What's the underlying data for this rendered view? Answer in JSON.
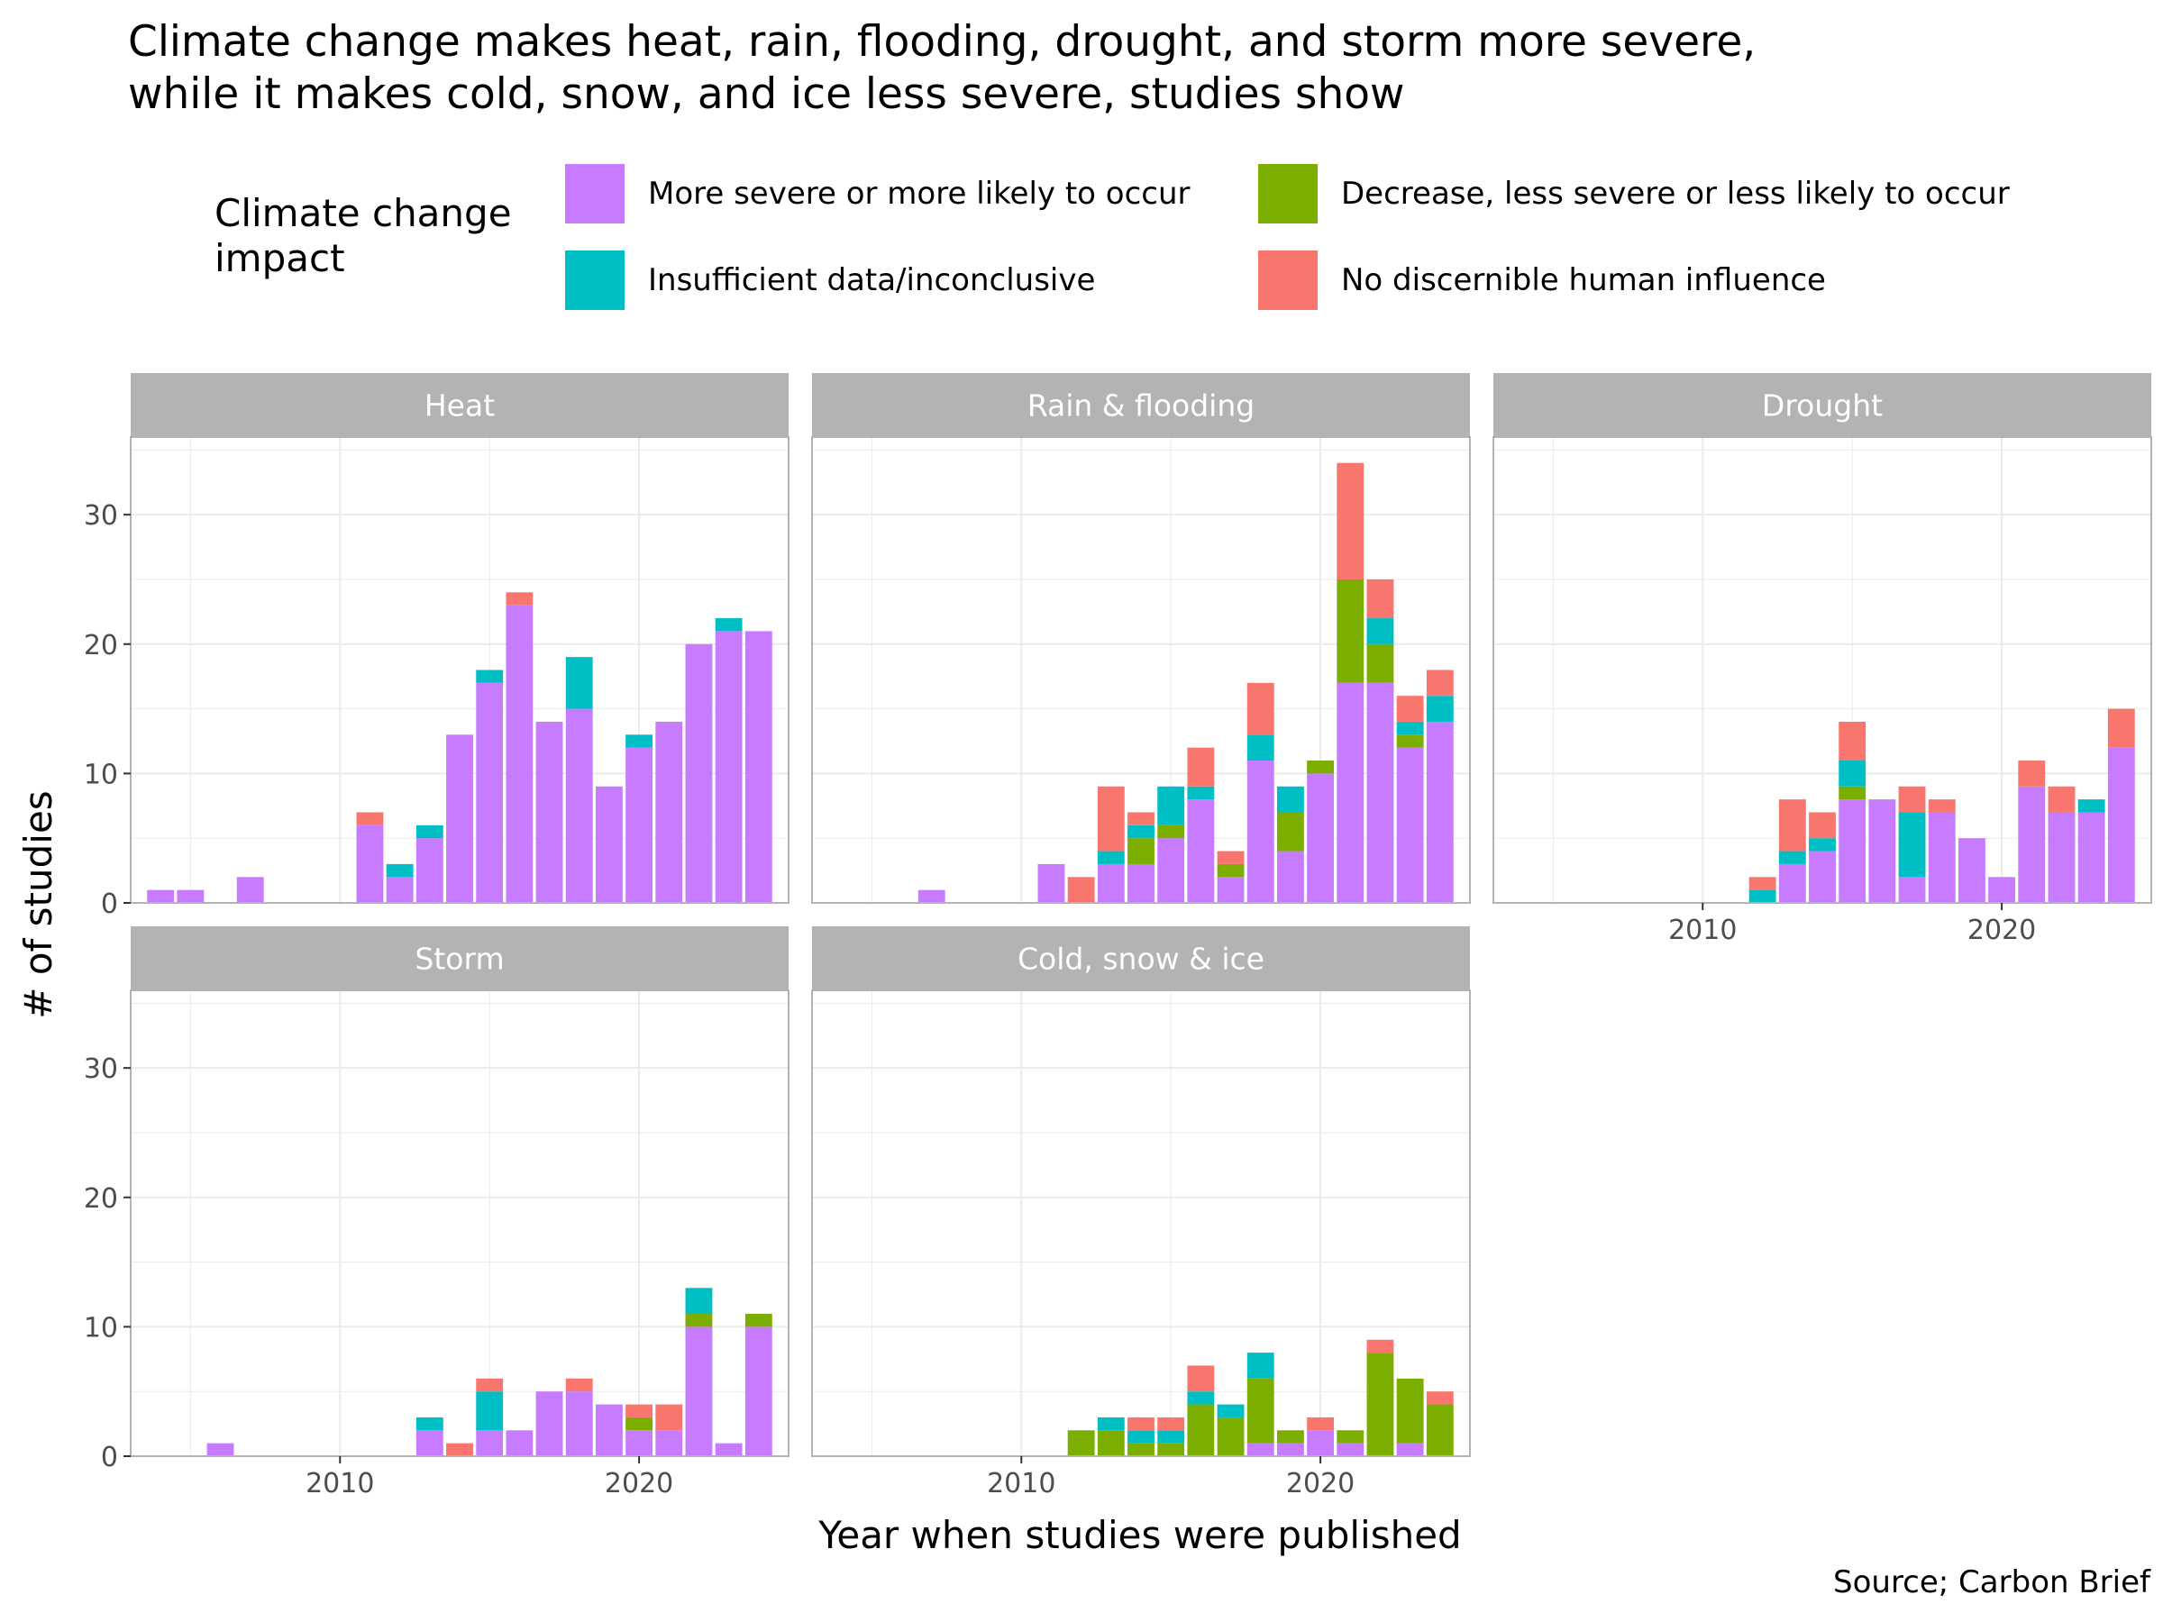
{
  "title_lines": [
    "Climate change makes heat, rain, flooding, drought, and storm more severe,",
    "while it makes cold, snow, and ice less severe, studies show"
  ],
  "legend": {
    "title_lines": [
      "Climate change",
      "impact"
    ],
    "items": [
      {
        "key": "more",
        "label": "More severe or more likely to occur",
        "color": "#C77CFF"
      },
      {
        "key": "decrease",
        "label": "Decrease, less severe or less likely to occur",
        "color": "#7CAE00"
      },
      {
        "key": "insufficient",
        "label": "Insufficient data/inconclusive",
        "color": "#00BFC4"
      },
      {
        "key": "none",
        "label": "No discernible human influence",
        "color": "#F8766D"
      }
    ]
  },
  "source": "Source; Carbon Brief",
  "chart_data": {
    "type": "bar",
    "stacked": true,
    "facets": true,
    "xlabel": "Year when studies were published",
    "ylabel": "# of studies",
    "xlim": [
      2003,
      2025
    ],
    "ylim": [
      0,
      36
    ],
    "x_ticks": [
      2010,
      2020
    ],
    "y_ticks": [
      0,
      10,
      20,
      30
    ],
    "stack_order": [
      "more",
      "decrease",
      "insufficient",
      "none"
    ],
    "panels": [
      {
        "name": "Heat",
        "bars": [
          {
            "year": 2004,
            "more": 1
          },
          {
            "year": 2005,
            "more": 1
          },
          {
            "year": 2007,
            "more": 2
          },
          {
            "year": 2011,
            "more": 6,
            "none": 1
          },
          {
            "year": 2012,
            "more": 2,
            "insufficient": 1
          },
          {
            "year": 2013,
            "more": 5,
            "insufficient": 1
          },
          {
            "year": 2014,
            "more": 13
          },
          {
            "year": 2015,
            "more": 17,
            "insufficient": 1
          },
          {
            "year": 2016,
            "more": 23,
            "none": 1
          },
          {
            "year": 2017,
            "more": 14
          },
          {
            "year": 2018,
            "more": 15,
            "insufficient": 4
          },
          {
            "year": 2019,
            "more": 9
          },
          {
            "year": 2020,
            "more": 12,
            "insufficient": 1
          },
          {
            "year": 2021,
            "more": 14
          },
          {
            "year": 2022,
            "more": 20
          },
          {
            "year": 2023,
            "more": 21,
            "insufficient": 1
          },
          {
            "year": 2024,
            "more": 21
          }
        ]
      },
      {
        "name": "Rain & flooding",
        "bars": [
          {
            "year": 2007,
            "more": 1
          },
          {
            "year": 2011,
            "more": 3
          },
          {
            "year": 2012,
            "none": 2
          },
          {
            "year": 2013,
            "more": 3,
            "insufficient": 1,
            "none": 5
          },
          {
            "year": 2014,
            "more": 3,
            "insufficient": 1,
            "decrease": 2,
            "none": 1
          },
          {
            "year": 2015,
            "more": 5,
            "insufficient": 3,
            "decrease": 1
          },
          {
            "year": 2016,
            "more": 8,
            "insufficient": 1,
            "none": 3
          },
          {
            "year": 2017,
            "more": 2,
            "decrease": 1,
            "none": 1
          },
          {
            "year": 2018,
            "more": 11,
            "insufficient": 2,
            "none": 4
          },
          {
            "year": 2019,
            "more": 4,
            "insufficient": 2,
            "decrease": 3
          },
          {
            "year": 2020,
            "more": 10,
            "decrease": 1
          },
          {
            "year": 2021,
            "more": 17,
            "decrease": 8,
            "none": 9
          },
          {
            "year": 2022,
            "more": 17,
            "insufficient": 2,
            "decrease": 3,
            "none": 3
          },
          {
            "year": 2023,
            "more": 12,
            "insufficient": 1,
            "decrease": 1,
            "none": 2
          },
          {
            "year": 2024,
            "more": 14,
            "insufficient": 2,
            "none": 2
          }
        ]
      },
      {
        "name": "Drought",
        "bars": [
          {
            "year": 2012,
            "insufficient": 1,
            "none": 1
          },
          {
            "year": 2013,
            "more": 3,
            "insufficient": 1,
            "none": 4
          },
          {
            "year": 2014,
            "more": 4,
            "insufficient": 1,
            "none": 2
          },
          {
            "year": 2015,
            "more": 8,
            "insufficient": 2,
            "decrease": 1,
            "none": 3
          },
          {
            "year": 2016,
            "more": 8
          },
          {
            "year": 2017,
            "more": 2,
            "insufficient": 5,
            "none": 2
          },
          {
            "year": 2018,
            "more": 7,
            "none": 1
          },
          {
            "year": 2019,
            "more": 5
          },
          {
            "year": 2020,
            "more": 2
          },
          {
            "year": 2021,
            "more": 9,
            "none": 2
          },
          {
            "year": 2022,
            "more": 7,
            "none": 2
          },
          {
            "year": 2023,
            "more": 7,
            "insufficient": 1
          },
          {
            "year": 2024,
            "more": 12,
            "none": 3
          }
        ]
      },
      {
        "name": "Storm",
        "bars": [
          {
            "year": 2006,
            "more": 1
          },
          {
            "year": 2013,
            "more": 2,
            "insufficient": 1
          },
          {
            "year": 2014,
            "none": 1
          },
          {
            "year": 2015,
            "more": 2,
            "insufficient": 3,
            "none": 1
          },
          {
            "year": 2016,
            "more": 2
          },
          {
            "year": 2017,
            "more": 5
          },
          {
            "year": 2018,
            "more": 5,
            "none": 1
          },
          {
            "year": 2019,
            "more": 4
          },
          {
            "year": 2020,
            "more": 2,
            "decrease": 1,
            "none": 1
          },
          {
            "year": 2021,
            "more": 2,
            "none": 2
          },
          {
            "year": 2022,
            "more": 10,
            "insufficient": 2,
            "decrease": 1
          },
          {
            "year": 2023,
            "more": 1
          },
          {
            "year": 2024,
            "more": 10,
            "decrease": 1
          }
        ]
      },
      {
        "name": "Cold, snow & ice",
        "bars": [
          {
            "year": 2012,
            "decrease": 2
          },
          {
            "year": 2013,
            "insufficient": 1,
            "decrease": 2
          },
          {
            "year": 2014,
            "insufficient": 1,
            "decrease": 1,
            "none": 1
          },
          {
            "year": 2015,
            "insufficient": 1,
            "decrease": 1,
            "none": 1
          },
          {
            "year": 2016,
            "insufficient": 1,
            "decrease": 4,
            "none": 2
          },
          {
            "year": 2017,
            "insufficient": 1,
            "decrease": 3
          },
          {
            "year": 2018,
            "more": 1,
            "insufficient": 2,
            "decrease": 5
          },
          {
            "year": 2019,
            "more": 1,
            "decrease": 1
          },
          {
            "year": 2020,
            "more": 2,
            "none": 1
          },
          {
            "year": 2021,
            "more": 1,
            "decrease": 1
          },
          {
            "year": 2022,
            "decrease": 8,
            "none": 1
          },
          {
            "year": 2023,
            "more": 1,
            "decrease": 5
          },
          {
            "year": 2024,
            "decrease": 4,
            "none": 1
          }
        ]
      }
    ]
  }
}
